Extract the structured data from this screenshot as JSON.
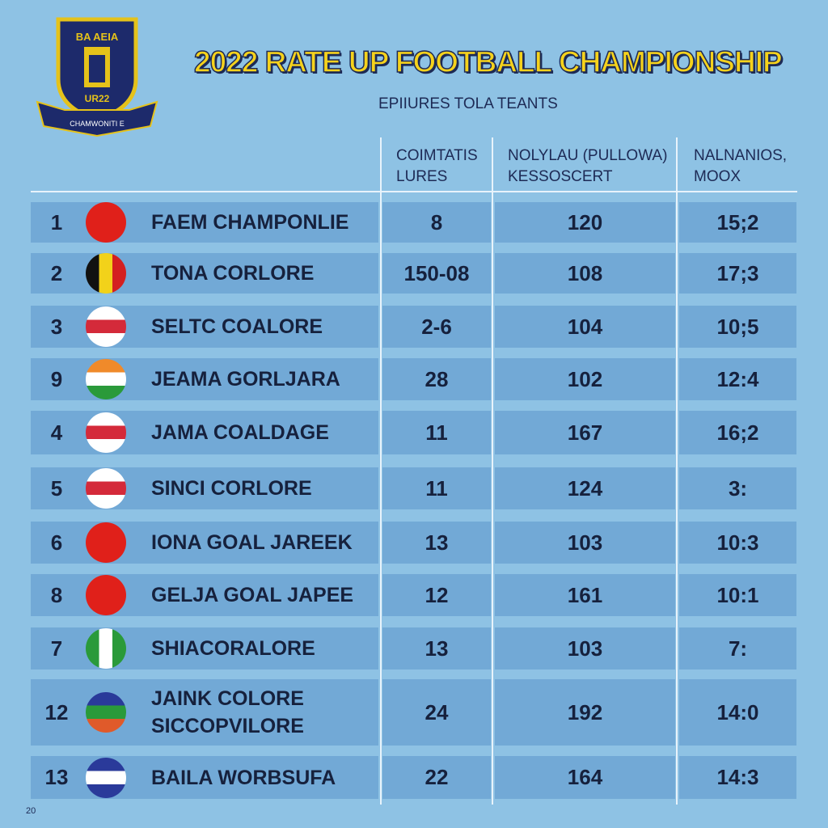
{
  "header": {
    "logo_top": "BA AEIA",
    "logo_year": "UR22",
    "logo_ribbon": "CHAMWONITI E",
    "title": "2022 RATE UP FOOTBALL CHAMPIONSHIP",
    "subtitle": "EPIIURES TOLA TEANTS"
  },
  "table": {
    "columns": [
      "COIMTATIS\nLURES",
      "NOLYLAU (PULLOWA)\nKESSOSCERT",
      "NALNANIOS,\nMOOX"
    ],
    "rows": [
      [
        "1",
        "FAEM CHAMPONLIE",
        "8",
        "120",
        "15;2"
      ],
      [
        "2",
        "TONA CORLORE",
        "150-08",
        "108",
        "17;3"
      ],
      [
        "3",
        "SELTC COALORE",
        "2-6",
        "104",
        "10;5"
      ],
      [
        "9",
        "JEAMA GORLJARA",
        "28",
        "102",
        "12:4"
      ],
      [
        "4",
        "JAMA COALDAGE",
        "11",
        "167",
        "16;2"
      ],
      [
        "5",
        "SINCI CORLORE",
        "11",
        "124",
        "3:"
      ],
      [
        "6",
        "IONA GOAL JAREEK",
        "13",
        "103",
        "10:3"
      ],
      [
        "8",
        "GELJA GOAL JAPEE",
        "12",
        "161",
        "10:1"
      ],
      [
        "7",
        "SHIACORALORE",
        "13",
        "103",
        "7:"
      ],
      [
        "12",
        "JAINK COLORE\nSICCOPVILORE",
        "24",
        "192",
        "14:0"
      ],
      [
        "13",
        "BAILA WORBSUFA",
        "22",
        "164",
        "14:3"
      ]
    ]
  },
  "footer": {
    "page": "20"
  }
}
